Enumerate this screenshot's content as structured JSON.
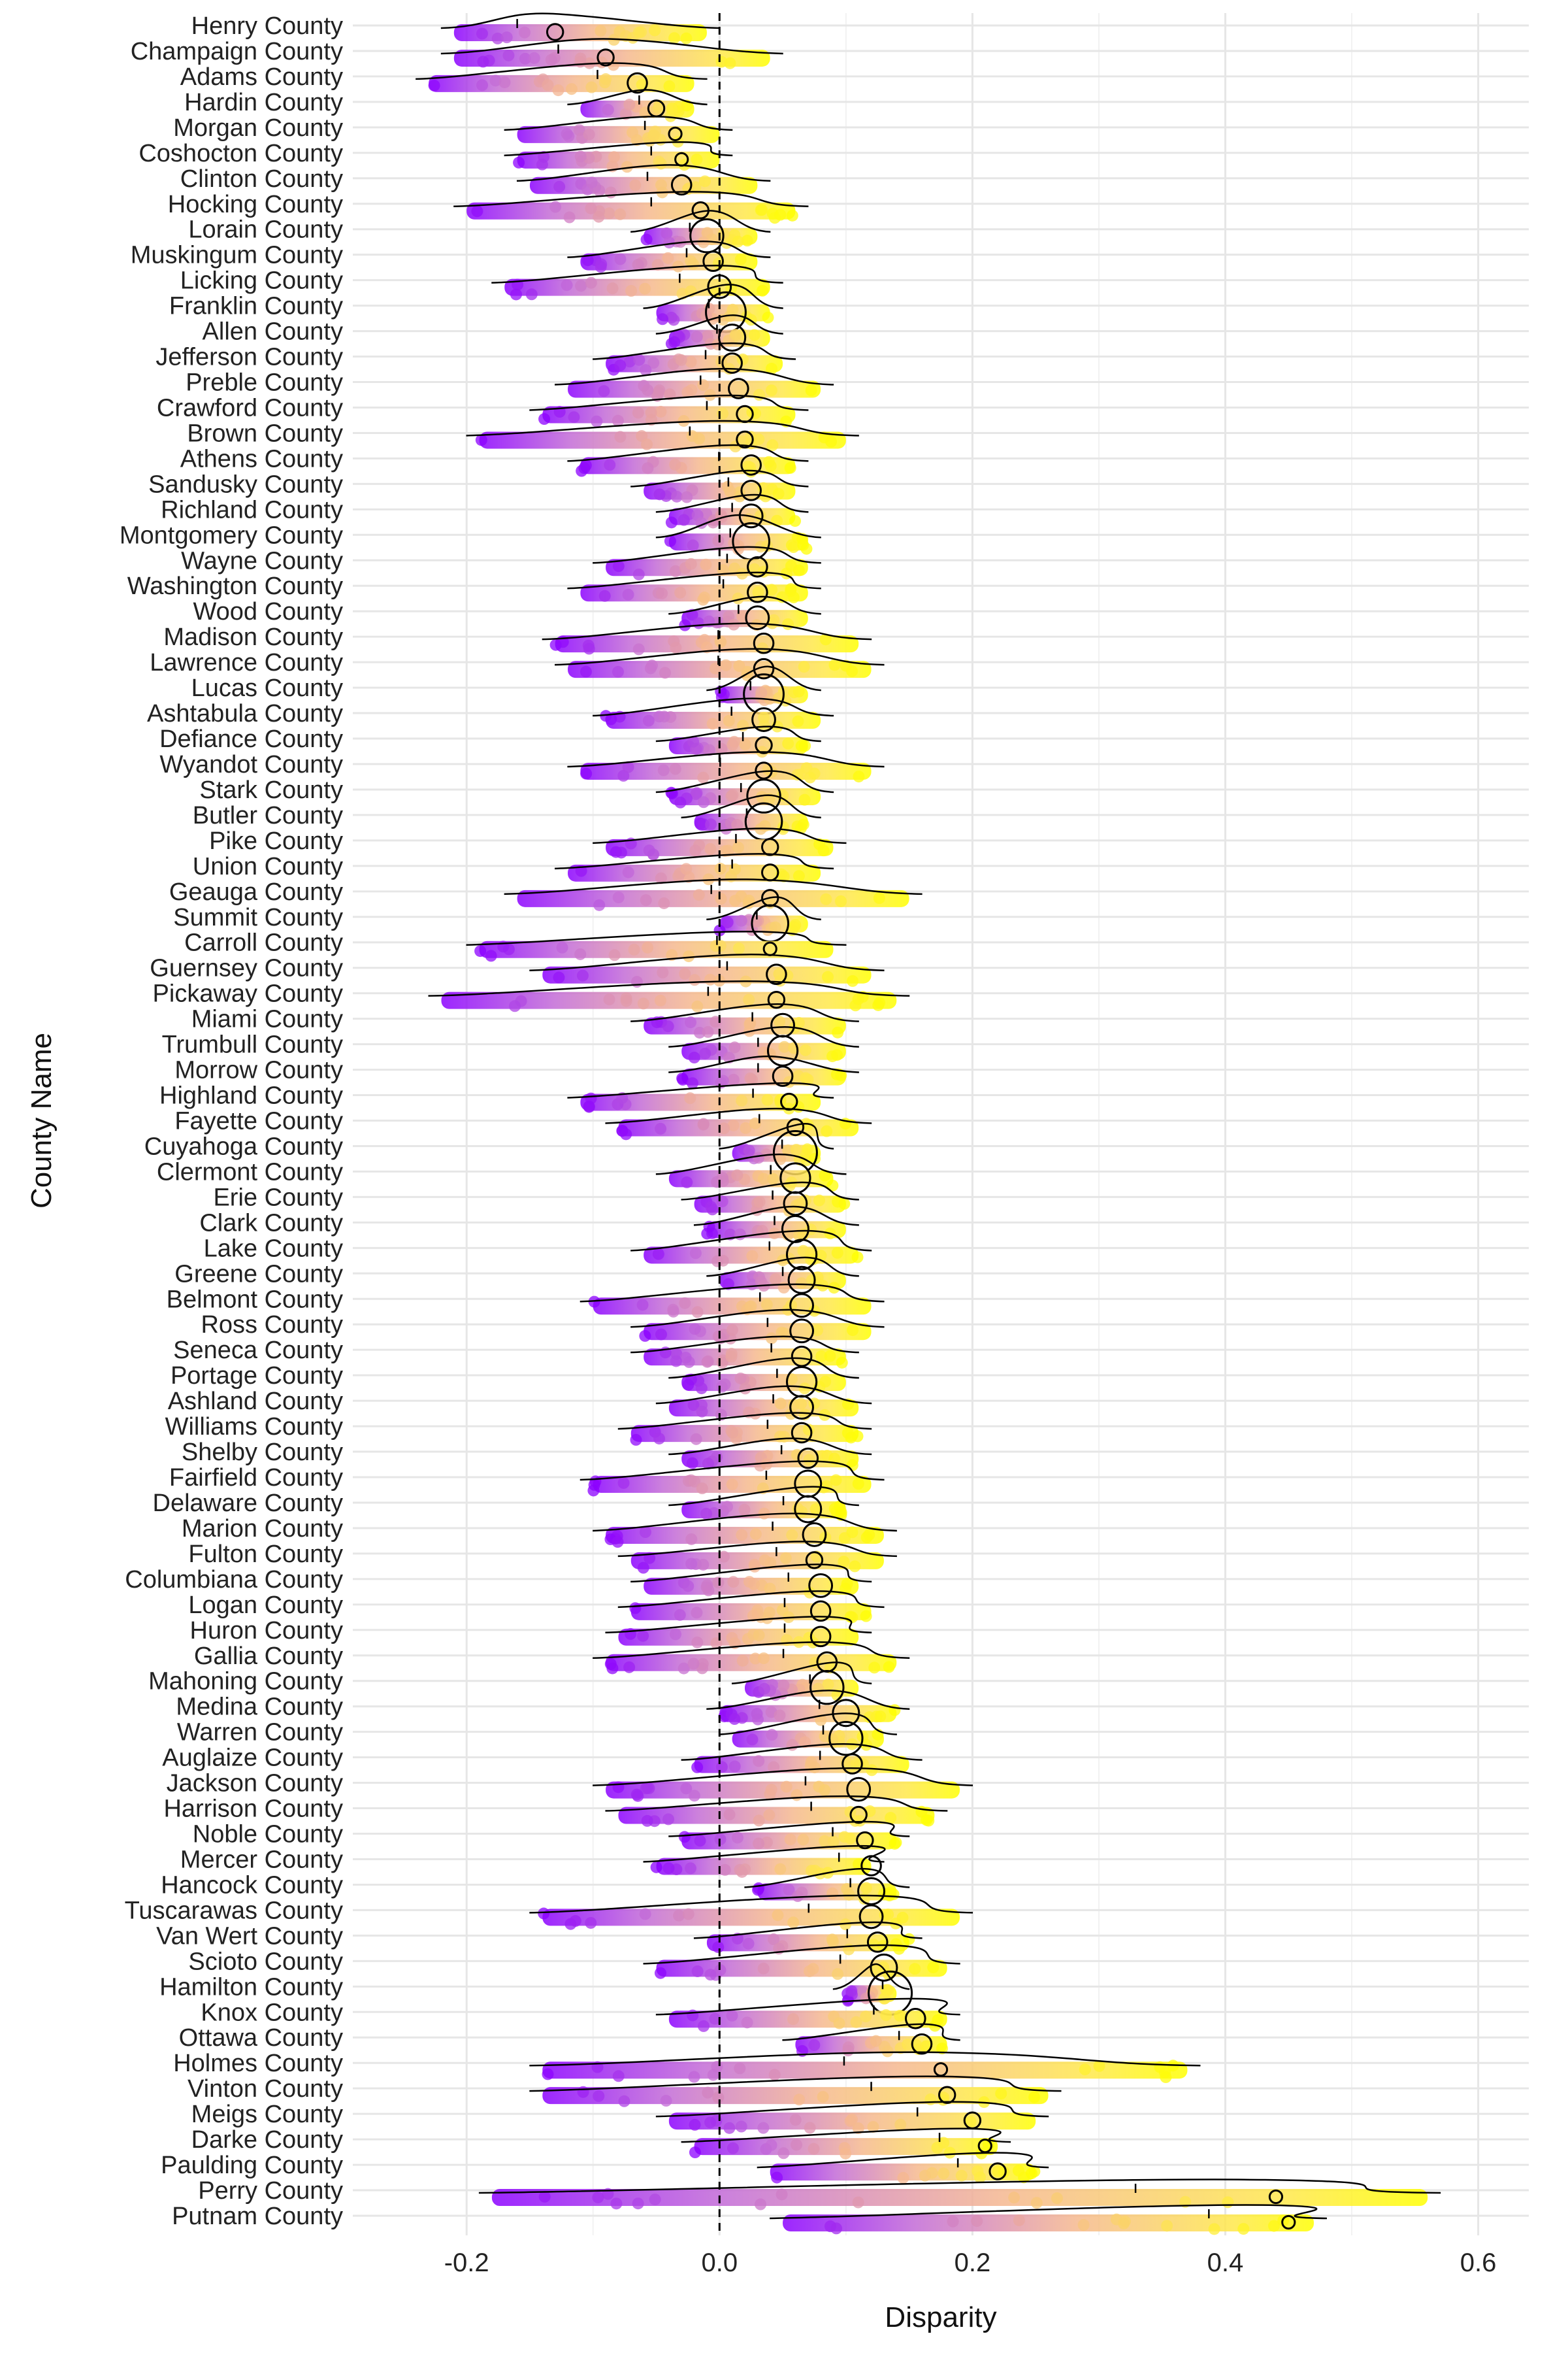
{
  "chart_data": {
    "type": "scatter",
    "title": "",
    "xlabel": "Disparity",
    "ylabel": "County Name",
    "xlim": [
      -0.29,
      0.64
    ],
    "x_ticks": [
      -0.2,
      0.0,
      0.2,
      0.4,
      0.6
    ],
    "x_tick_labels": [
      "-0.2",
      "0.0",
      "0.2",
      "0.4",
      "0.6"
    ],
    "reference_line": 0.0,
    "grid": true,
    "color_gradient": [
      "#8b00ff",
      "#c36bd6",
      "#f5b88f",
      "#ffe84a",
      "#ffff00"
    ],
    "counties": [
      {
        "name": "Henry County",
        "min": -0.21,
        "max": -0.01,
        "mean": -0.13,
        "size": 2
      },
      {
        "name": "Champaign County",
        "min": -0.21,
        "max": 0.04,
        "mean": -0.09,
        "size": 2
      },
      {
        "name": "Adams County",
        "min": -0.23,
        "max": -0.02,
        "mean": -0.065,
        "size": 3
      },
      {
        "name": "Hardin County",
        "min": -0.11,
        "max": -0.02,
        "mean": -0.05,
        "size": 2
      },
      {
        "name": "Morgan County",
        "min": -0.16,
        "max": 0.0,
        "mean": -0.035,
        "size": 1
      },
      {
        "name": "Coshocton County",
        "min": -0.16,
        "max": 0.0,
        "mean": -0.03,
        "size": 1
      },
      {
        "name": "Clinton County",
        "min": -0.15,
        "max": 0.03,
        "mean": -0.03,
        "size": 3
      },
      {
        "name": "Hocking County",
        "min": -0.2,
        "max": 0.06,
        "mean": -0.015,
        "size": 2
      },
      {
        "name": "Lorain County",
        "min": -0.06,
        "max": 0.03,
        "mean": -0.01,
        "size": 7
      },
      {
        "name": "Muskingum County",
        "min": -0.11,
        "max": 0.03,
        "mean": -0.005,
        "size": 3
      },
      {
        "name": "Licking County",
        "min": -0.17,
        "max": 0.04,
        "mean": 0.0,
        "size": 4
      },
      {
        "name": "Franklin County",
        "min": -0.05,
        "max": 0.04,
        "mean": 0.005,
        "size": 9
      },
      {
        "name": "Allen County",
        "min": -0.04,
        "max": 0.04,
        "mean": 0.01,
        "size": 5
      },
      {
        "name": "Jefferson County",
        "min": -0.09,
        "max": 0.05,
        "mean": 0.01,
        "size": 3
      },
      {
        "name": "Preble County",
        "min": -0.12,
        "max": 0.08,
        "mean": 0.015,
        "size": 3
      },
      {
        "name": "Crawford County",
        "min": -0.14,
        "max": 0.06,
        "mean": 0.02,
        "size": 2
      },
      {
        "name": "Brown County",
        "min": -0.19,
        "max": 0.1,
        "mean": 0.02,
        "size": 2
      },
      {
        "name": "Athens County",
        "min": -0.11,
        "max": 0.06,
        "mean": 0.025,
        "size": 3
      },
      {
        "name": "Sandusky County",
        "min": -0.06,
        "max": 0.06,
        "mean": 0.025,
        "size": 3
      },
      {
        "name": "Richland County",
        "min": -0.04,
        "max": 0.06,
        "mean": 0.025,
        "size": 4
      },
      {
        "name": "Montgomery County",
        "min": -0.04,
        "max": 0.07,
        "mean": 0.025,
        "size": 8
      },
      {
        "name": "Wayne County",
        "min": -0.09,
        "max": 0.07,
        "mean": 0.03,
        "size": 3
      },
      {
        "name": "Washington County",
        "min": -0.11,
        "max": 0.07,
        "mean": 0.03,
        "size": 3
      },
      {
        "name": "Wood County",
        "min": -0.03,
        "max": 0.07,
        "mean": 0.03,
        "size": 4
      },
      {
        "name": "Madison County",
        "min": -0.13,
        "max": 0.11,
        "mean": 0.035,
        "size": 3
      },
      {
        "name": "Lawrence County",
        "min": -0.12,
        "max": 0.12,
        "mean": 0.035,
        "size": 3
      },
      {
        "name": "Lucas County",
        "min": 0.0,
        "max": 0.07,
        "mean": 0.035,
        "size": 9
      },
      {
        "name": "Ashtabula County",
        "min": -0.09,
        "max": 0.08,
        "mean": 0.035,
        "size": 4
      },
      {
        "name": "Defiance County",
        "min": -0.04,
        "max": 0.07,
        "mean": 0.035,
        "size": 2
      },
      {
        "name": "Wyandot County",
        "min": -0.11,
        "max": 0.12,
        "mean": 0.035,
        "size": 2
      },
      {
        "name": "Stark County",
        "min": -0.04,
        "max": 0.08,
        "mean": 0.035,
        "size": 7
      },
      {
        "name": "Butler County",
        "min": -0.02,
        "max": 0.07,
        "mean": 0.035,
        "size": 8
      },
      {
        "name": "Pike County",
        "min": -0.09,
        "max": 0.09,
        "mean": 0.04,
        "size": 2
      },
      {
        "name": "Union County",
        "min": -0.12,
        "max": 0.08,
        "mean": 0.04,
        "size": 2
      },
      {
        "name": "Geauga County",
        "min": -0.16,
        "max": 0.15,
        "mean": 0.04,
        "size": 2
      },
      {
        "name": "Summit County",
        "min": 0.0,
        "max": 0.07,
        "mean": 0.04,
        "size": 8
      },
      {
        "name": "Carroll County",
        "min": -0.19,
        "max": 0.09,
        "mean": 0.04,
        "size": 1
      },
      {
        "name": "Guernsey County",
        "min": -0.14,
        "max": 0.12,
        "mean": 0.045,
        "size": 3
      },
      {
        "name": "Pickaway County",
        "min": -0.22,
        "max": 0.14,
        "mean": 0.045,
        "size": 2
      },
      {
        "name": "Miami County",
        "min": -0.06,
        "max": 0.1,
        "mean": 0.05,
        "size": 4
      },
      {
        "name": "Trumbull County",
        "min": -0.03,
        "max": 0.1,
        "mean": 0.05,
        "size": 6
      },
      {
        "name": "Morrow County",
        "min": -0.03,
        "max": 0.1,
        "mean": 0.05,
        "size": 3
      },
      {
        "name": "Highland County",
        "min": -0.11,
        "max": 0.08,
        "mean": 0.055,
        "size": 2
      },
      {
        "name": "Fayette County",
        "min": -0.08,
        "max": 0.11,
        "mean": 0.06,
        "size": 2
      },
      {
        "name": "Cuyahoga County",
        "min": 0.01,
        "max": 0.08,
        "mean": 0.06,
        "size": 10
      },
      {
        "name": "Clermont County",
        "min": -0.04,
        "max": 0.09,
        "mean": 0.06,
        "size": 6
      },
      {
        "name": "Erie County",
        "min": -0.02,
        "max": 0.1,
        "mean": 0.06,
        "size": 4
      },
      {
        "name": "Clark County",
        "min": -0.01,
        "max": 0.1,
        "mean": 0.06,
        "size": 5
      },
      {
        "name": "Lake County",
        "min": -0.06,
        "max": 0.11,
        "mean": 0.065,
        "size": 6
      },
      {
        "name": "Greene County",
        "min": 0.0,
        "max": 0.1,
        "mean": 0.065,
        "size": 5
      },
      {
        "name": "Belmont County",
        "min": -0.1,
        "max": 0.12,
        "mean": 0.065,
        "size": 4
      },
      {
        "name": "Ross County",
        "min": -0.06,
        "max": 0.12,
        "mean": 0.065,
        "size": 4
      },
      {
        "name": "Seneca County",
        "min": -0.06,
        "max": 0.1,
        "mean": 0.065,
        "size": 3
      },
      {
        "name": "Portage County",
        "min": -0.03,
        "max": 0.1,
        "mean": 0.065,
        "size": 6
      },
      {
        "name": "Ashland County",
        "min": -0.04,
        "max": 0.11,
        "mean": 0.065,
        "size": 4
      },
      {
        "name": "Williams County",
        "min": -0.07,
        "max": 0.11,
        "mean": 0.065,
        "size": 3
      },
      {
        "name": "Shelby County",
        "min": -0.03,
        "max": 0.11,
        "mean": 0.07,
        "size": 3
      },
      {
        "name": "Fairfield County",
        "min": -0.1,
        "max": 0.12,
        "mean": 0.07,
        "size": 5
      },
      {
        "name": "Delaware County",
        "min": -0.03,
        "max": 0.1,
        "mean": 0.07,
        "size": 5
      },
      {
        "name": "Marion County",
        "min": -0.09,
        "max": 0.13,
        "mean": 0.075,
        "size": 4
      },
      {
        "name": "Fulton County",
        "min": -0.07,
        "max": 0.13,
        "mean": 0.075,
        "size": 2
      },
      {
        "name": "Columbiana County",
        "min": -0.06,
        "max": 0.11,
        "mean": 0.08,
        "size": 4
      },
      {
        "name": "Logan County",
        "min": -0.07,
        "max": 0.12,
        "mean": 0.08,
        "size": 3
      },
      {
        "name": "Huron County",
        "min": -0.08,
        "max": 0.11,
        "mean": 0.08,
        "size": 3
      },
      {
        "name": "Gallia County",
        "min": -0.09,
        "max": 0.14,
        "mean": 0.085,
        "size": 3
      },
      {
        "name": "Mahoning County",
        "min": 0.02,
        "max": 0.11,
        "mean": 0.085,
        "size": 7
      },
      {
        "name": "Medina County",
        "min": 0.0,
        "max": 0.14,
        "mean": 0.1,
        "size": 5
      },
      {
        "name": "Warren County",
        "min": 0.01,
        "max": 0.13,
        "mean": 0.1,
        "size": 7
      },
      {
        "name": "Auglaize County",
        "min": -0.02,
        "max": 0.15,
        "mean": 0.105,
        "size": 3
      },
      {
        "name": "Jackson County",
        "min": -0.09,
        "max": 0.19,
        "mean": 0.11,
        "size": 4
      },
      {
        "name": "Harrison County",
        "min": -0.08,
        "max": 0.17,
        "mean": 0.11,
        "size": 2
      },
      {
        "name": "Noble County",
        "min": -0.03,
        "max": 0.14,
        "mean": 0.115,
        "size": 2
      },
      {
        "name": "Mercer County",
        "min": -0.05,
        "max": 0.12,
        "mean": 0.12,
        "size": 3
      },
      {
        "name": "Hancock County",
        "min": 0.03,
        "max": 0.14,
        "mean": 0.12,
        "size": 5
      },
      {
        "name": "Tuscarawas County",
        "min": -0.14,
        "max": 0.19,
        "mean": 0.12,
        "size": 4
      },
      {
        "name": "Van Wert County",
        "min": -0.01,
        "max": 0.15,
        "mean": 0.125,
        "size": 3
      },
      {
        "name": "Scioto County",
        "min": -0.05,
        "max": 0.18,
        "mean": 0.13,
        "size": 5
      },
      {
        "name": "Hamilton County",
        "min": 0.1,
        "max": 0.14,
        "mean": 0.135,
        "size": 10
      },
      {
        "name": "Knox County",
        "min": -0.04,
        "max": 0.18,
        "mean": 0.155,
        "size": 3
      },
      {
        "name": "Ottawa County",
        "min": 0.06,
        "max": 0.18,
        "mean": 0.16,
        "size": 3
      },
      {
        "name": "Holmes County",
        "min": -0.14,
        "max": 0.37,
        "mean": 0.175,
        "size": 1
      },
      {
        "name": "Vinton County",
        "min": -0.14,
        "max": 0.26,
        "mean": 0.18,
        "size": 2
      },
      {
        "name": "Meigs County",
        "min": -0.04,
        "max": 0.25,
        "mean": 0.2,
        "size": 2
      },
      {
        "name": "Darke County",
        "min": -0.02,
        "max": 0.22,
        "mean": 0.21,
        "size": 1
      },
      {
        "name": "Paulding County",
        "min": 0.04,
        "max": 0.25,
        "mean": 0.22,
        "size": 2
      },
      {
        "name": "Perry County",
        "min": -0.18,
        "max": 0.56,
        "mean": 0.44,
        "size": 1
      },
      {
        "name": "Putnam County",
        "min": 0.05,
        "max": 0.47,
        "mean": 0.45,
        "size": 1
      }
    ]
  }
}
